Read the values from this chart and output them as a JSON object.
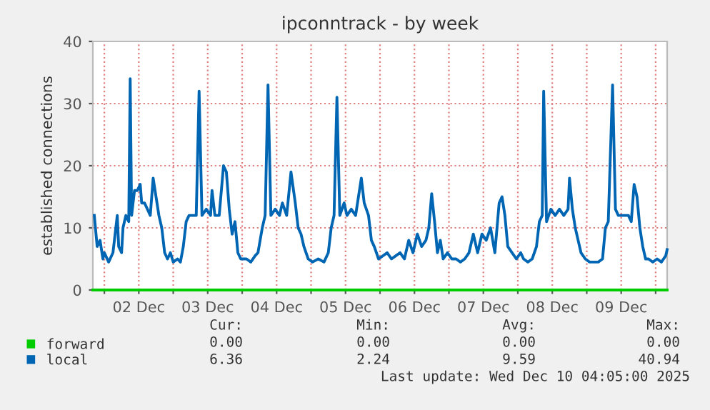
{
  "chart_data": {
    "type": "line",
    "title": "ipconntrack - by week",
    "ylabel": "established connections",
    "x": [
      "2025-12-01T20:30",
      "2025-12-01T21:30",
      "2025-12-01T22:30",
      "2025-12-01T23:30",
      "2025-12-02T00:00",
      "2025-12-02T01:30",
      "2025-12-02T03:00",
      "2025-12-02T04:30",
      "2025-12-02T05:00",
      "2025-12-02T06:00",
      "2025-12-02T06:30",
      "2025-12-02T07:30",
      "2025-12-02T08:30",
      "2025-12-02T09:00",
      "2025-12-02T09:30",
      "2025-12-02T10:30",
      "2025-12-02T11:30",
      "2025-12-02T12:30",
      "2025-12-02T13:00",
      "2025-12-02T14:00",
      "2025-12-02T15:00",
      "2025-12-02T16:00",
      "2025-12-02T17:00",
      "2025-12-02T18:00",
      "2025-12-02T19:00",
      "2025-12-02T20:00",
      "2025-12-02T21:00",
      "2025-12-02T22:00",
      "2025-12-02T23:00",
      "2025-12-03T00:00",
      "2025-12-03T01:30",
      "2025-12-03T02:30",
      "2025-12-03T03:30",
      "2025-12-03T04:30",
      "2025-12-03T05:30",
      "2025-12-03T08:00",
      "2025-12-03T09:00",
      "2025-12-03T10:00",
      "2025-12-03T11:30",
      "2025-12-03T13:00",
      "2025-12-03T13:30",
      "2025-12-03T14:30",
      "2025-12-03T16:00",
      "2025-12-03T17:30",
      "2025-12-03T18:30",
      "2025-12-03T19:30",
      "2025-12-03T20:30",
      "2025-12-03T21:30",
      "2025-12-03T22:30",
      "2025-12-03T23:30",
      "2025-12-04T01:30",
      "2025-12-04T03:00",
      "2025-12-04T04:30",
      "2025-12-04T05:30",
      "2025-12-04T07:00",
      "2025-12-04T08:00",
      "2025-12-04T09:00",
      "2025-12-04T10:00",
      "2025-12-04T11:30",
      "2025-12-04T13:00",
      "2025-12-04T14:00",
      "2025-12-04T15:30",
      "2025-12-04T17:00",
      "2025-12-04T18:30",
      "2025-12-04T19:30",
      "2025-12-04T20:30",
      "2025-12-04T21:30",
      "2025-12-04T23:00",
      "2025-12-05T00:30",
      "2025-12-05T02:30",
      "2025-12-05T04:30",
      "2025-12-05T06:00",
      "2025-12-05T07:00",
      "2025-12-05T08:00",
      "2025-12-05T09:00",
      "2025-12-05T10:00",
      "2025-12-05T11:30",
      "2025-12-05T12:30",
      "2025-12-05T14:00",
      "2025-12-05T15:30",
      "2025-12-05T17:30",
      "2025-12-05T18:30",
      "2025-12-05T20:00",
      "2025-12-05T21:00",
      "2025-12-05T22:00",
      "2025-12-05T23:30",
      "2025-12-06T02:30",
      "2025-12-06T04:00",
      "2025-12-06T05:30",
      "2025-12-06T07:00",
      "2025-12-06T08:30",
      "2025-12-06T10:00",
      "2025-12-06T11:30",
      "2025-12-06T13:00",
      "2025-12-06T14:30",
      "2025-12-06T16:00",
      "2025-12-06T17:00",
      "2025-12-06T18:00",
      "2025-12-06T19:00",
      "2025-12-06T20:00",
      "2025-12-06T21:00",
      "2025-12-06T22:00",
      "2025-12-06T23:30",
      "2025-12-07T01:00",
      "2025-12-07T02:30",
      "2025-12-07T04:00",
      "2025-12-07T05:30",
      "2025-12-07T07:00",
      "2025-12-07T08:30",
      "2025-12-07T10:00",
      "2025-12-07T11:30",
      "2025-12-07T13:00",
      "2025-12-07T14:30",
      "2025-12-07T16:00",
      "2025-12-07T17:30",
      "2025-12-07T18:30",
      "2025-12-07T19:30",
      "2025-12-07T20:30",
      "2025-12-07T22:00",
      "2025-12-07T23:30",
      "2025-12-08T01:00",
      "2025-12-08T02:00",
      "2025-12-08T03:30",
      "2025-12-08T05:00",
      "2025-12-08T06:30",
      "2025-12-08T07:30",
      "2025-12-08T08:30",
      "2025-12-08T09:00",
      "2025-12-08T10:00",
      "2025-12-08T11:30",
      "2025-12-08T13:00",
      "2025-12-08T14:30",
      "2025-12-08T16:00",
      "2025-12-08T17:30",
      "2025-12-08T18:00",
      "2025-12-08T19:00",
      "2025-12-08T20:00",
      "2025-12-08T21:00",
      "2025-12-08T22:00",
      "2025-12-08T23:30",
      "2025-12-09T01:00",
      "2025-12-09T02:30",
      "2025-12-09T04:00",
      "2025-12-09T05:30",
      "2025-12-09T06:30",
      "2025-12-09T07:30",
      "2025-12-09T09:00",
      "2025-12-09T10:00",
      "2025-12-09T11:00",
      "2025-12-09T12:00",
      "2025-12-09T13:30",
      "2025-12-09T14:30",
      "2025-12-09T15:30",
      "2025-12-09T16:30",
      "2025-12-09T17:30",
      "2025-12-09T18:30",
      "2025-12-09T19:30",
      "2025-12-09T20:30",
      "2025-12-09T21:30",
      "2025-12-09T23:00",
      "2025-12-10T00:30",
      "2025-12-10T02:00",
      "2025-12-10T03:30",
      "2025-12-10T04:00"
    ],
    "series": [
      {
        "name": "forward",
        "color": "#00cc00",
        "x": [
          "2025-12-01T20:00",
          "2025-12-10T04:00"
        ],
        "values": [
          0,
          0
        ]
      },
      {
        "name": "local",
        "color": "#0066b3",
        "values": [
          12,
          7,
          8,
          5,
          6,
          4.5,
          6,
          12,
          7,
          6,
          10,
          12,
          11,
          34,
          12,
          16,
          16,
          17,
          14,
          14,
          13,
          12,
          18,
          15,
          12,
          10,
          6,
          5,
          6,
          4.5,
          5,
          4.5,
          7,
          11,
          12,
          12,
          32,
          12,
          13,
          12,
          16,
          12,
          12,
          20,
          19,
          13,
          9,
          11,
          6,
          5,
          5,
          4.5,
          5.5,
          6,
          10,
          12,
          33,
          12,
          13,
          12,
          14,
          12,
          19,
          14,
          10,
          9,
          7,
          5,
          4.5,
          5,
          4.5,
          6,
          10,
          12,
          31,
          12,
          14,
          12,
          13,
          12,
          18,
          14,
          12,
          8,
          7,
          5,
          6,
          5,
          5.5,
          6,
          5,
          8,
          6,
          9,
          7,
          8,
          10,
          15.5,
          11,
          6,
          8,
          5,
          6,
          5,
          5,
          4.5,
          5,
          6,
          9,
          6,
          9,
          8,
          10,
          6,
          14,
          15,
          12,
          7,
          6,
          5,
          6,
          5,
          4.5,
          5,
          7,
          11,
          12,
          32,
          11,
          13,
          12,
          13,
          12,
          13,
          18,
          13,
          10,
          8,
          6,
          5,
          4.5,
          4.5,
          4.5,
          5,
          10,
          11,
          33,
          13,
          12,
          12,
          12,
          12,
          11,
          17,
          15,
          10,
          7,
          5,
          5,
          4.5,
          5,
          4.5,
          5.5,
          6.5
        ]
      }
    ],
    "xlim": [
      "2025-12-01T20:00",
      "2025-12-10T04:00"
    ],
    "xticks": [
      {
        "value": "2025-12-02T00:00",
        "label": null
      },
      {
        "value": "2025-12-02T12:00",
        "label": "02 Dec"
      },
      {
        "value": "2025-12-03T00:00",
        "label": null
      },
      {
        "value": "2025-12-03T12:00",
        "label": "03 Dec"
      },
      {
        "value": "2025-12-04T00:00",
        "label": null
      },
      {
        "value": "2025-12-04T12:00",
        "label": "04 Dec"
      },
      {
        "value": "2025-12-05T00:00",
        "label": null
      },
      {
        "value": "2025-12-05T12:00",
        "label": "05 Dec"
      },
      {
        "value": "2025-12-06T00:00",
        "label": null
      },
      {
        "value": "2025-12-06T12:00",
        "label": "06 Dec"
      },
      {
        "value": "2025-12-07T00:00",
        "label": null
      },
      {
        "value": "2025-12-07T12:00",
        "label": "07 Dec"
      },
      {
        "value": "2025-12-08T00:00",
        "label": null
      },
      {
        "value": "2025-12-08T12:00",
        "label": "08 Dec"
      },
      {
        "value": "2025-12-09T00:00",
        "label": null
      },
      {
        "value": "2025-12-09T12:00",
        "label": "09 Dec"
      },
      {
        "value": "2025-12-10T00:00",
        "label": null
      }
    ],
    "ylim": [
      0,
      40
    ],
    "yticks": [
      0,
      10,
      20,
      30,
      40
    ],
    "grid": true,
    "legend": "bottom left",
    "annotations": [
      "Cur:",
      "Min:",
      "Avg:",
      "Max:",
      "0.00",
      "0.00",
      "0.00",
      "0.00",
      "6.36",
      "2.24",
      "9.59",
      "40.94",
      "Last update: Wed Dec 10 04:05:00 2025"
    ]
  }
}
